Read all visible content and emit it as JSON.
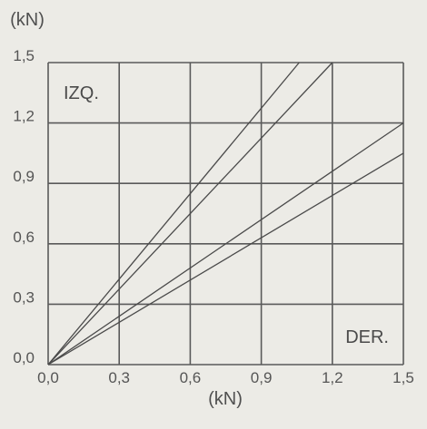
{
  "chart_data": {
    "type": "line",
    "x_unit": "(kN)",
    "y_unit": "(kN)",
    "xlim": [
      0.0,
      1.5
    ],
    "ylim": [
      0.0,
      1.5
    ],
    "x_ticks": [
      "0,0",
      "0,3",
      "0,6",
      "0,9",
      "1,2",
      "1,5"
    ],
    "y_ticks": [
      "0,0",
      "0,3",
      "0,6",
      "0,9",
      "1,2",
      "1,5"
    ],
    "grid": true,
    "annotations": [
      {
        "text": "IZQ.",
        "placement": "top-left"
      },
      {
        "text": "DER.",
        "placement": "bottom-right"
      }
    ],
    "series": [
      {
        "x": [
          0.0,
          1.06
        ],
        "y": [
          0.0,
          1.5
        ]
      },
      {
        "x": [
          0.0,
          1.2
        ],
        "y": [
          0.0,
          1.5
        ]
      },
      {
        "x": [
          0.0,
          1.5
        ],
        "y": [
          0.0,
          1.2
        ]
      },
      {
        "x": [
          0.0,
          1.5
        ],
        "y": [
          0.0,
          1.05
        ]
      }
    ]
  }
}
